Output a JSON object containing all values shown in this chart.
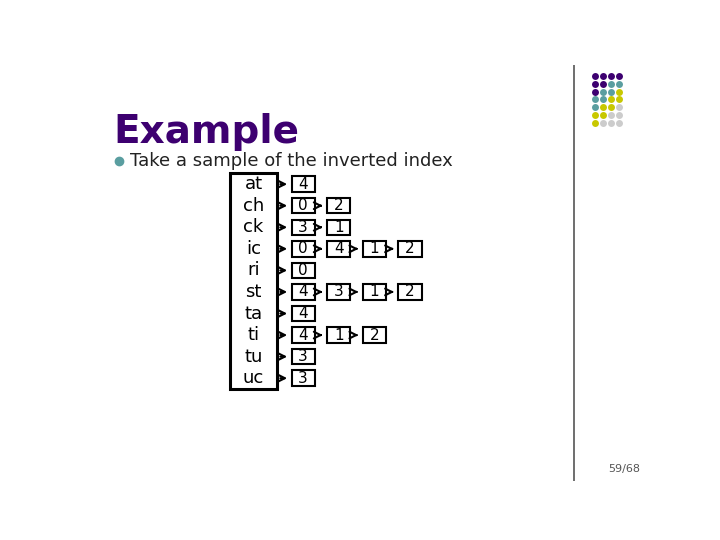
{
  "title": "Example",
  "bullet_text": "Take a sample of the inverted index",
  "bullet_color": "#5a9ea0",
  "title_color": "#3d0070",
  "background_color": "#ffffff",
  "page_number": "59/68",
  "index_terms": [
    "at",
    "ch",
    "ck",
    "ic",
    "ri",
    "st",
    "ta",
    "ti",
    "tu",
    "uc"
  ],
  "chains": {
    "at": [
      "4"
    ],
    "ch": [
      "0",
      "2"
    ],
    "ck": [
      "3",
      "1"
    ],
    "ic": [
      "0",
      "4",
      "1",
      "2"
    ],
    "ri": [
      "0"
    ],
    "st": [
      "4",
      "3",
      "1",
      "2"
    ],
    "ta": [
      "4"
    ],
    "ti": [
      "4",
      "1",
      "2"
    ],
    "tu": [
      "3"
    ],
    "uc": [
      "3"
    ]
  },
  "dot_grid": [
    [
      "#3d0070",
      "#3d0070",
      "#3d0070",
      "#3d0070"
    ],
    [
      "#3d0070",
      "#3d0070",
      "#5a9ea0",
      "#5a9ea0"
    ],
    [
      "#3d0070",
      "#5a9ea0",
      "#5a9ea0",
      "#c8c800"
    ],
    [
      "#5a9ea0",
      "#5a9ea0",
      "#c8c800",
      "#c8c800"
    ],
    [
      "#5a9ea0",
      "#c8c800",
      "#c8c800",
      "#cccccc"
    ],
    [
      "#c8c800",
      "#c8c800",
      "#cccccc",
      "#cccccc"
    ],
    [
      "#c8c800",
      "#cccccc",
      "#cccccc",
      "#cccccc"
    ]
  ],
  "vline_x": 0.868,
  "vline_color": "#555555"
}
